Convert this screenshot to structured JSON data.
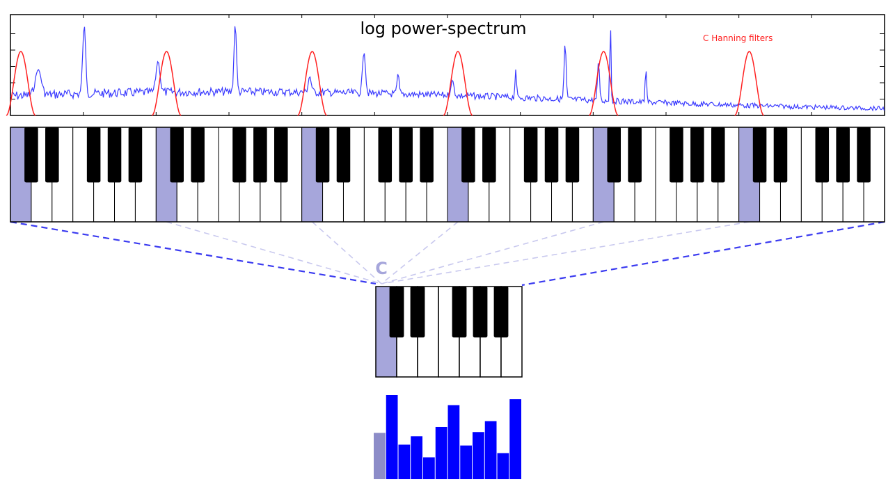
{
  "spectrum": {
    "title": "log power-spectrum",
    "filters_label": "C Hanning filters",
    "spectrum_color": "#3b3bff",
    "filter_color": "#ff2020"
  },
  "keyboard": {
    "octaves": 6,
    "highlight_note": "C",
    "highlight_color": "#a6a6db",
    "projection_color": "#3a3af0"
  },
  "octave": {
    "label": "C"
  },
  "chroma": {
    "bar_color": "#0000ff",
    "c_bar_color": "#8c8cc8",
    "values": [
      0.55,
      1.0,
      0.41,
      0.51,
      0.26,
      0.62,
      0.88,
      0.4,
      0.56,
      0.69,
      0.31,
      0.95
    ]
  }
}
